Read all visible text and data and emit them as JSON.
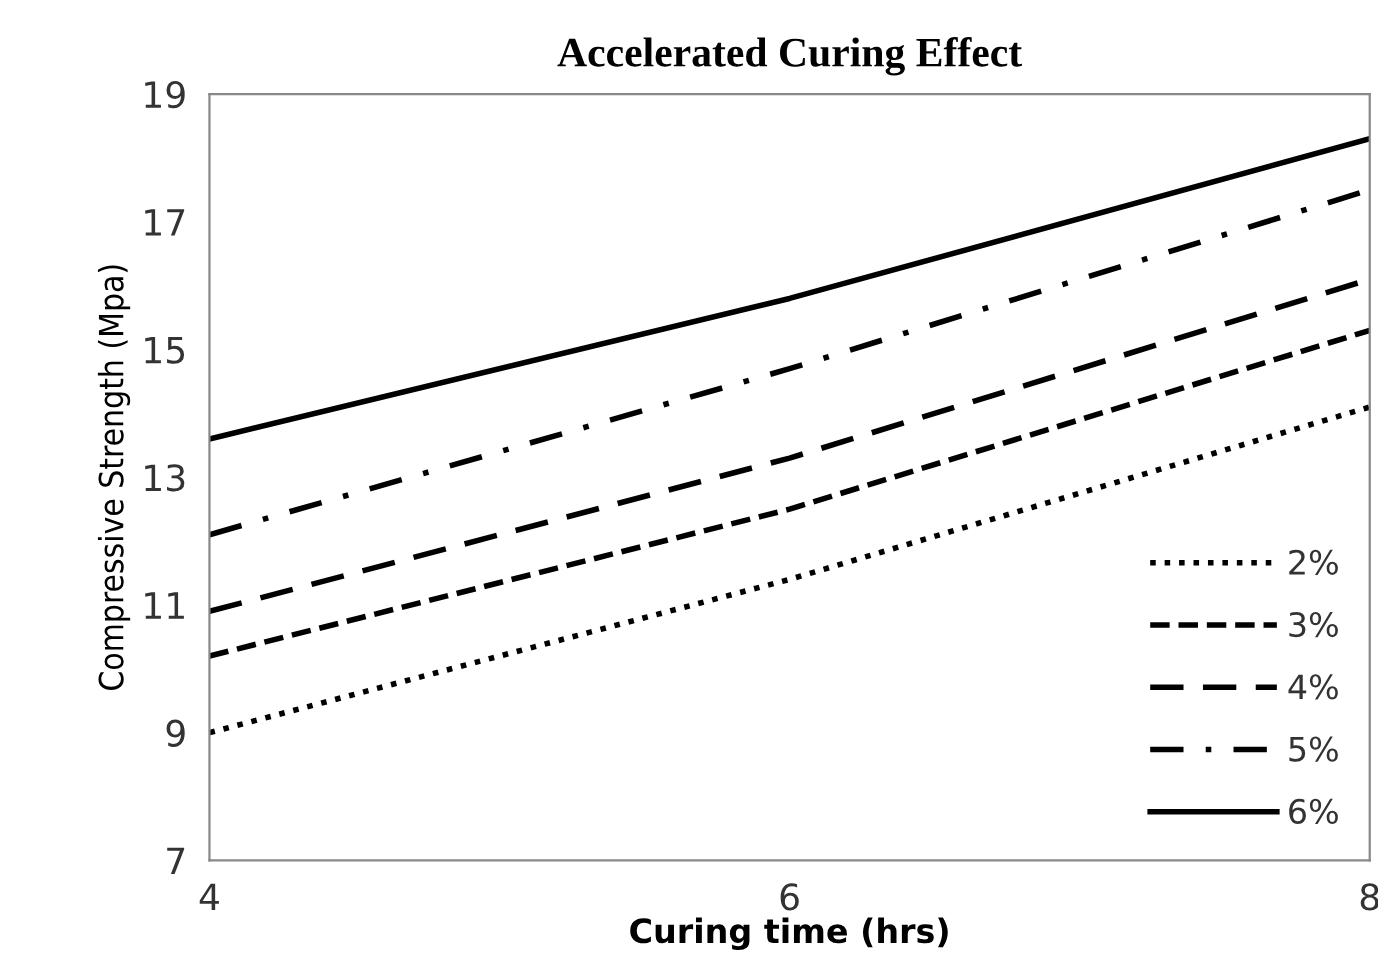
{
  "chart_data": {
    "type": "line",
    "title": "Accelerated Curing Effect",
    "xlabel": "Curing time (hrs)",
    "ylabel": "Compressive Strength (Mpa)",
    "x": [
      4,
      6,
      8
    ],
    "xlim": [
      4,
      8
    ],
    "xticks": [
      4,
      6,
      8
    ],
    "ylim": [
      7,
      19
    ],
    "yticks": [
      7,
      9,
      11,
      13,
      15,
      17,
      19
    ],
    "grid": false,
    "legend": "bottom right",
    "marker": "none",
    "series": [
      {
        "name": "2%",
        "color": "#000000",
        "line_style": "dotted",
        "values": [
          9.0,
          11.4,
          14.1
        ]
      },
      {
        "name": "3%",
        "color": "#000000",
        "line_style": "dashed",
        "values": [
          10.2,
          12.5,
          15.3
        ]
      },
      {
        "name": "4%",
        "color": "#000000",
        "line_style": "long dashed",
        "values": [
          10.9,
          13.3,
          16.1
        ]
      },
      {
        "name": "5%",
        "color": "#000000",
        "line_style": "dashdot",
        "values": [
          12.1,
          14.7,
          17.5
        ]
      },
      {
        "name": "6%",
        "color": "#000000",
        "line_style": "solid",
        "values": [
          13.6,
          15.8,
          18.3
        ]
      }
    ]
  }
}
